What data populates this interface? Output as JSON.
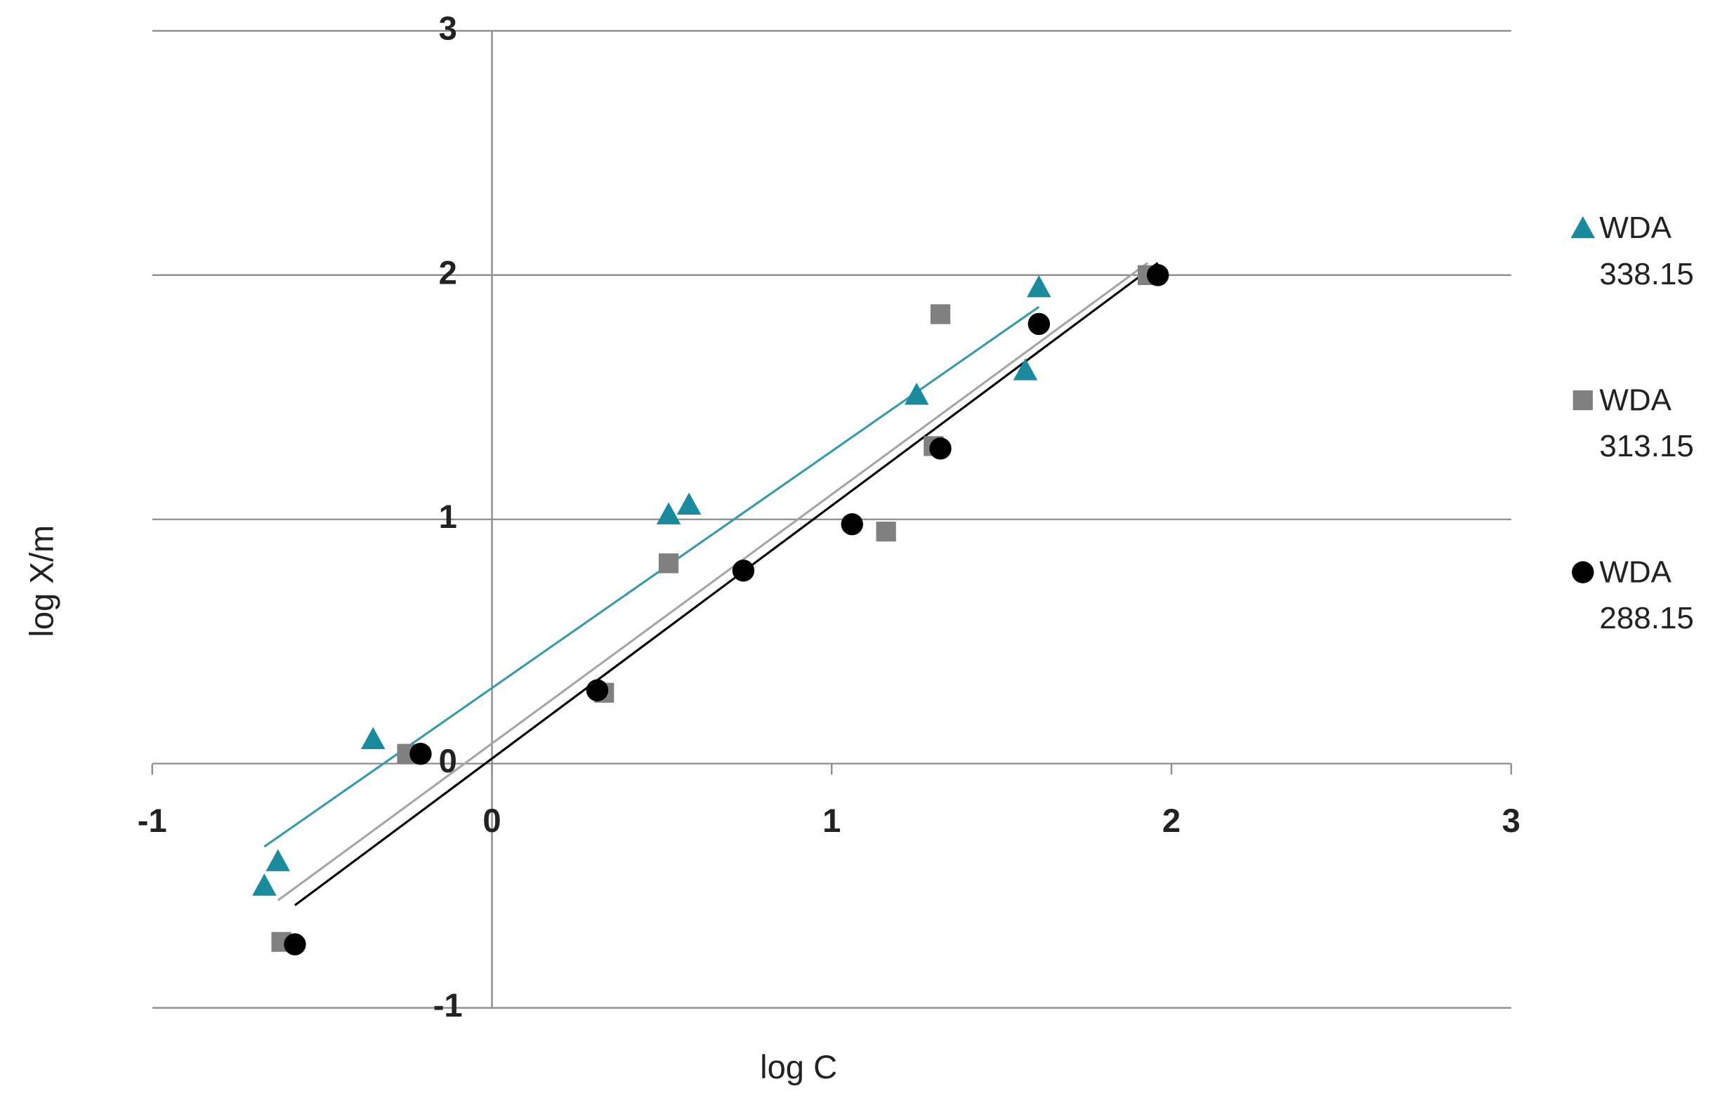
{
  "chart_data": {
    "type": "scatter",
    "x_label": "log C",
    "y_label": "log X/m",
    "xlim": [
      -1,
      3
    ],
    "ylim": [
      -1,
      3
    ],
    "xticks": [
      -1,
      0,
      1,
      2,
      3
    ],
    "yticks": [
      -1,
      0,
      1,
      2,
      3
    ],
    "grid": true,
    "legend": "right",
    "series": [
      {
        "name": "WDA 338.15",
        "color": "#1b8a9c",
        "marker": "triangle",
        "x": [
          -0.67,
          -0.63,
          -0.35,
          0.52,
          0.58,
          1.25,
          1.57,
          1.61
        ],
        "values": [
          -0.5,
          -0.4,
          0.1,
          1.02,
          1.06,
          1.51,
          1.61,
          1.95
        ],
        "trendline": {
          "color": "#3b9aaa",
          "x": [
            -0.67,
            1.61
          ],
          "values": [
            -0.34,
            1.87
          ]
        }
      },
      {
        "name": "WDA 313.15",
        "color": "#808080",
        "marker": "square",
        "x": [
          -0.62,
          -0.25,
          0.33,
          0.52,
          1.16,
          1.3,
          1.32,
          1.93
        ],
        "values": [
          -0.73,
          0.04,
          0.29,
          0.82,
          0.95,
          1.3,
          1.84,
          2.0
        ],
        "trendline": {
          "color": "#a6a6a6",
          "x": [
            -0.63,
            1.93
          ],
          "values": [
            -0.56,
            2.05
          ]
        }
      },
      {
        "name": "WDA 288.15",
        "color": "#000000",
        "marker": "circle",
        "x": [
          -0.58,
          -0.21,
          0.31,
          0.74,
          1.06,
          1.32,
          1.61,
          1.96
        ],
        "values": [
          -0.74,
          0.04,
          0.3,
          0.79,
          0.98,
          1.29,
          1.8,
          2.0
        ],
        "trendline": {
          "color": "#000000",
          "x": [
            -0.58,
            1.96
          ],
          "values": [
            -0.58,
            2.05
          ]
        }
      }
    ]
  }
}
